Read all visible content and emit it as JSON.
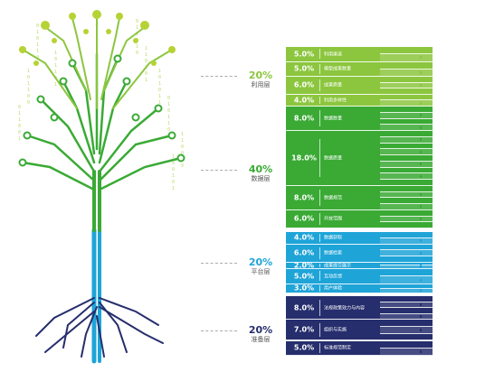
{
  "layers": [
    {
      "key": "app",
      "pct": "20%",
      "name": "利用层",
      "color": "#8cc63f",
      "rows": [
        {
          "pct": "5.0%",
          "name": "利用渠道"
        },
        {
          "pct": "5.0%",
          "name": "模型成果数量"
        },
        {
          "pct": "6.0%",
          "name": "成果质量"
        },
        {
          "pct": "4.0%",
          "name": "利用多样性"
        }
      ]
    },
    {
      "key": "data",
      "pct": "40%",
      "name": "数据层",
      "color": "#3aaa35",
      "rows": [
        {
          "pct": "8.0%",
          "name": "数据数量"
        },
        {
          "pct": "18.0%",
          "name": "数据质量"
        },
        {
          "pct": "8.0%",
          "name": "数据规范"
        },
        {
          "pct": "6.0%",
          "name": "开放范围"
        }
      ]
    },
    {
      "key": "platform",
      "pct": "20%",
      "name": "平台层",
      "color": "#1fa4d8",
      "rows": [
        {
          "pct": "4.0%",
          "name": "数据获取"
        },
        {
          "pct": "6.0%",
          "name": "数据检索"
        },
        {
          "pct": "2.0%",
          "name": "成果提交展示"
        },
        {
          "pct": "5.0%",
          "name": "互动反馈"
        },
        {
          "pct": "3.0%",
          "name": "用户体验"
        }
      ]
    },
    {
      "key": "prep",
      "pct": "20%",
      "name": "准备层",
      "color": "#262e6d",
      "rows": [
        {
          "pct": "8.0%",
          "name": "法规政策效力与内容"
        },
        {
          "pct": "7.0%",
          "name": "组织与实施"
        },
        {
          "pct": "5.0%",
          "name": "标准规范制定"
        }
      ]
    }
  ],
  "binary_digits": [
    "0",
    "1",
    "0",
    "1",
    "1",
    "0",
    "1",
    "0",
    "1",
    "1",
    "0",
    "0",
    "1",
    "0",
    "1"
  ],
  "colors": {
    "leaf_light": "#b5d334",
    "leaf_mid": "#8cc63f",
    "branch_green": "#3aaa35",
    "trunk_blue": "#1fa4d8",
    "root_navy": "#262e6d"
  }
}
